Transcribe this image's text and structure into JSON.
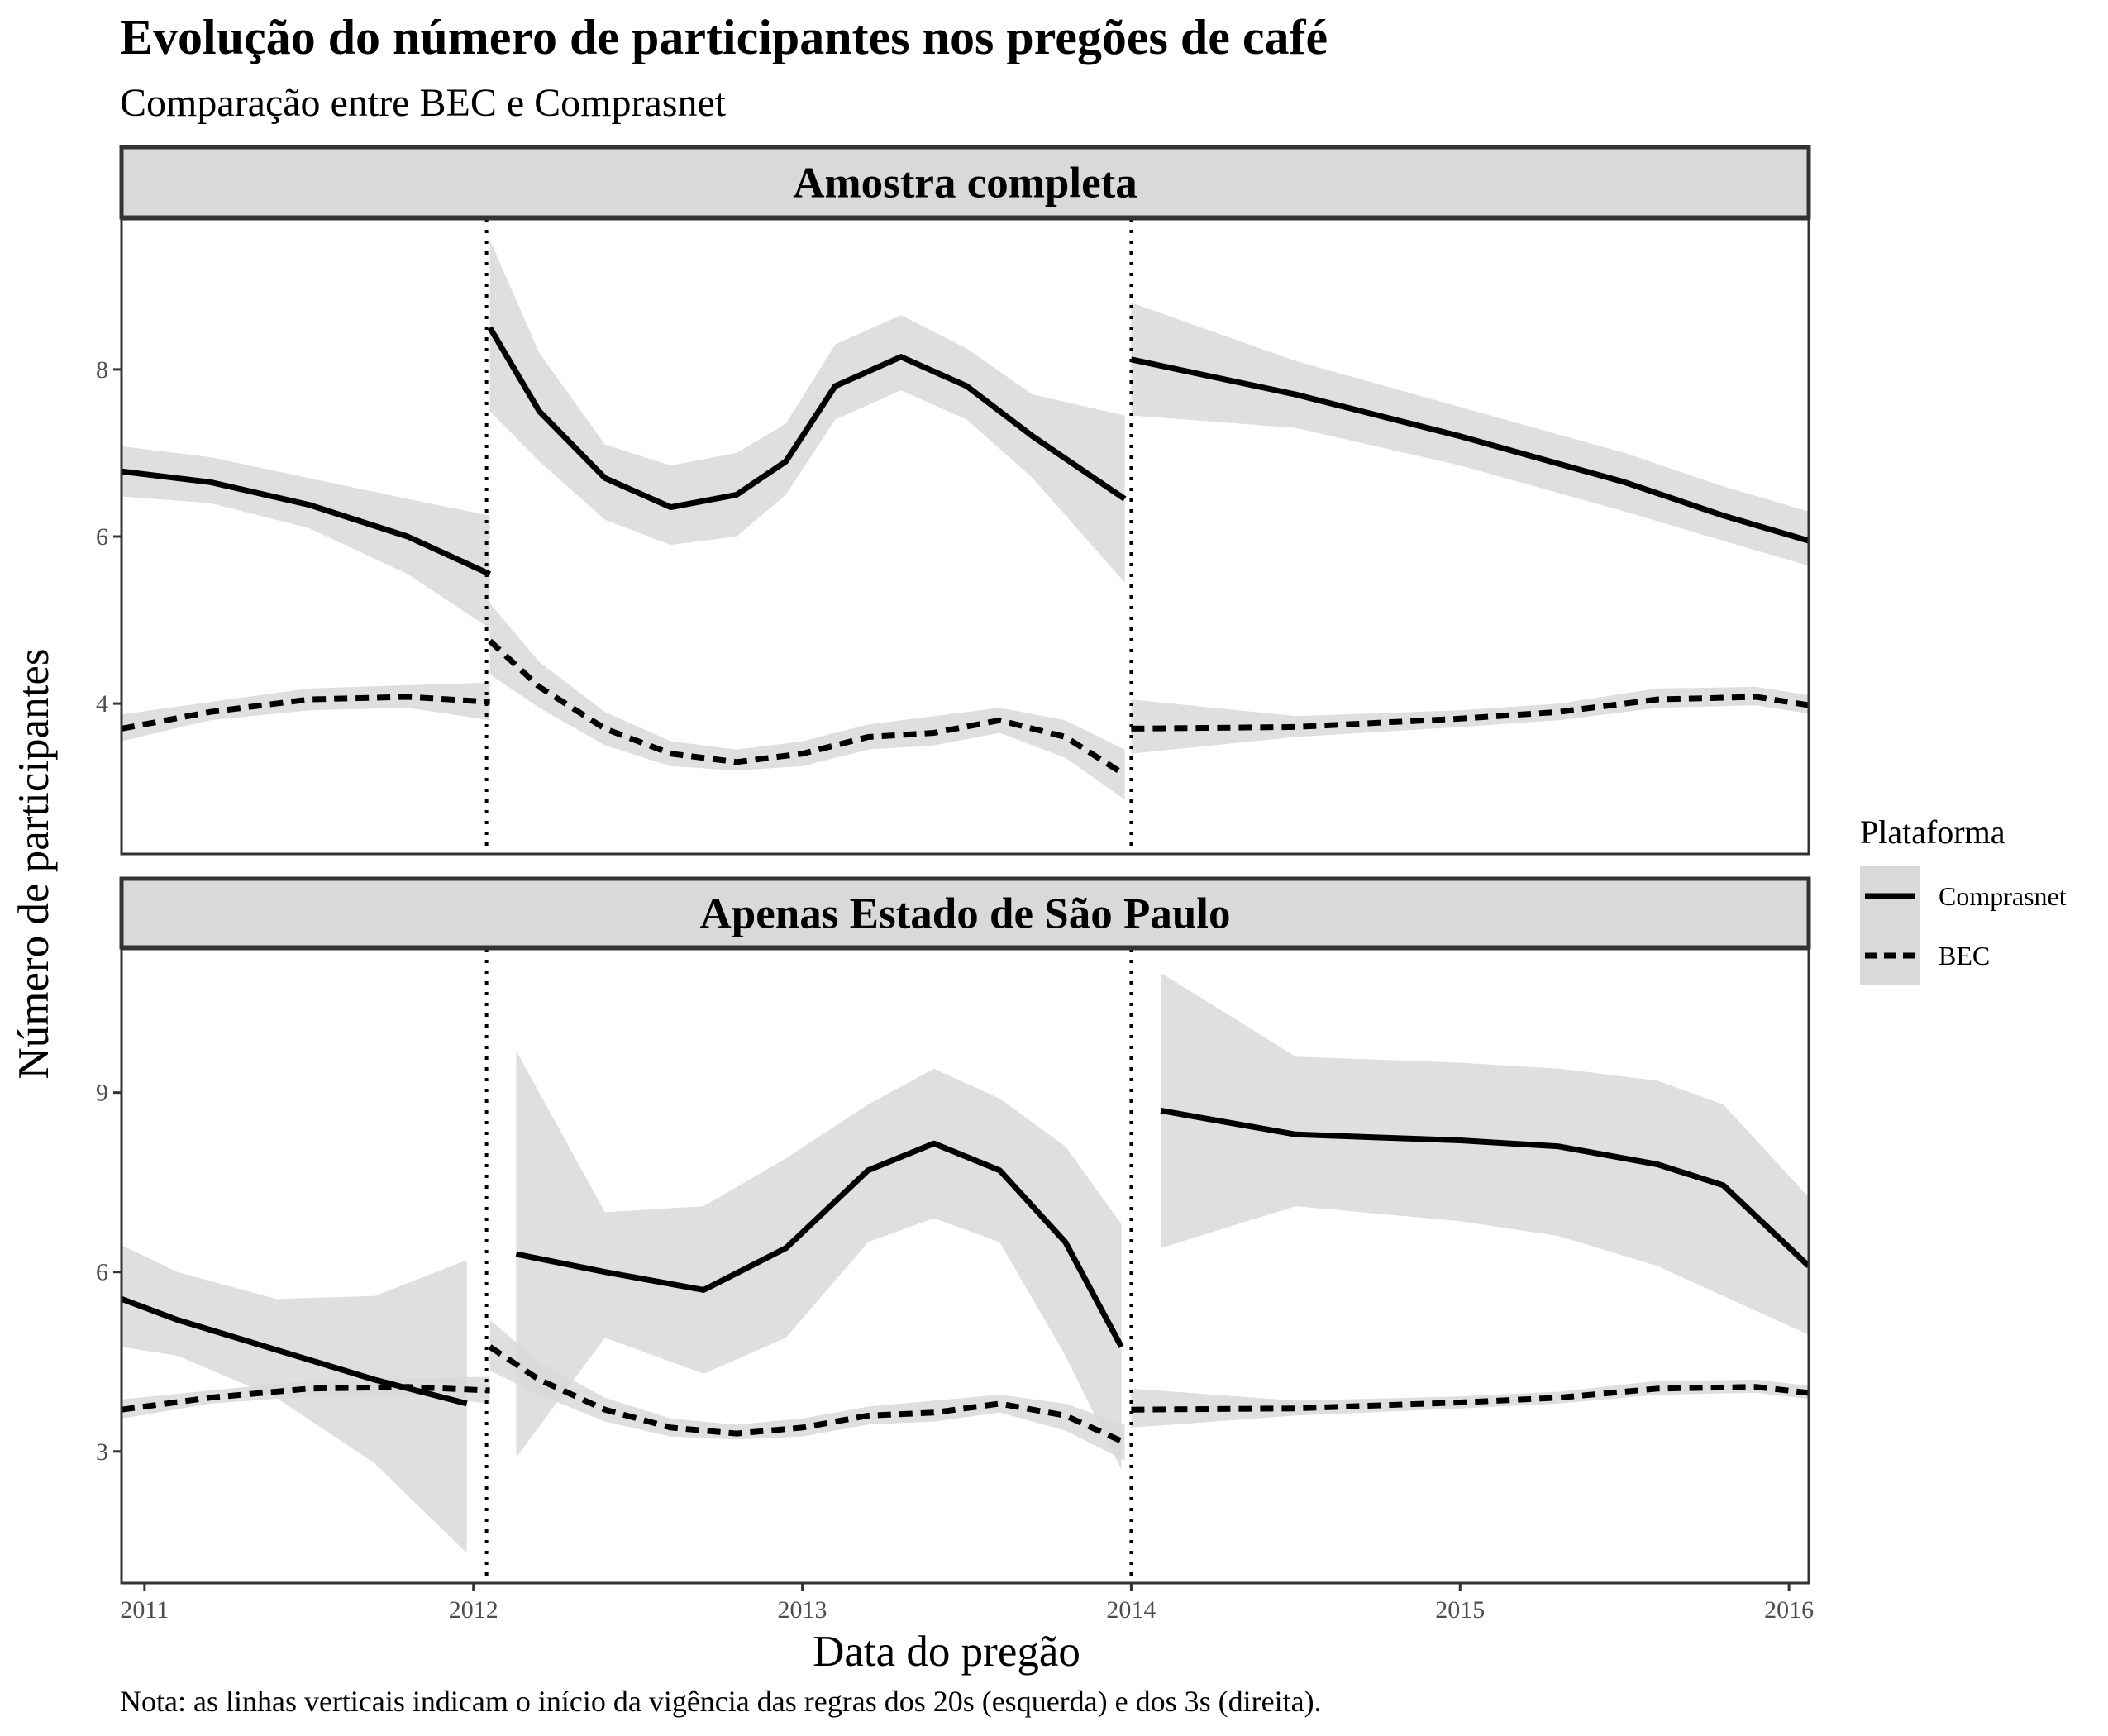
{
  "chart_data": {
    "type": "line",
    "title": "Evolução do número de participantes nos pregões de café",
    "subtitle": "Comparação entre BEC e Comprasnet",
    "xlabel": "Data do pregão",
    "ylabel": "Número de participantes",
    "caption": "Nota: as linhas verticais indicam o início da vigência das regras dos 20s (esquerda) e dos 3s (direita).",
    "legend": {
      "title": "Plataforma",
      "position": "right",
      "entries": [
        {
          "label": "Comprasnet",
          "linetype": "solid"
        },
        {
          "label": "BEC",
          "linetype": "dashed"
        }
      ]
    },
    "x_range": [
      2010.93,
      2016.06
    ],
    "x_ticks": [
      2011,
      2012,
      2013,
      2014,
      2015,
      2016
    ],
    "x_tick_labels": [
      "2011",
      "2012",
      "2013",
      "2014",
      "2015",
      "2016"
    ],
    "vlines": [
      2012.04,
      2014.0
    ],
    "colors": {
      "line": "#000000",
      "ribbon": "#d9d9d9",
      "strip": "#d9d9d9",
      "panel_border": "#333333"
    },
    "panels": [
      {
        "strip": "Amostra completa",
        "ylim": [
          2.2,
          9.8
        ],
        "y_ticks": [
          4,
          6,
          8
        ],
        "y_tick_labels": [
          "4",
          "6",
          "8"
        ],
        "series": [
          {
            "name": "Comprasnet",
            "segments": [
              {
                "x": [
                  2010.93,
                  2011.2,
                  2011.5,
                  2011.8,
                  2012.05
                ],
                "y": [
                  6.78,
                  6.65,
                  6.38,
                  6.0,
                  5.55
                ],
                "lo": [
                  6.48,
                  6.4,
                  6.1,
                  5.55,
                  4.9
                ],
                "hi": [
                  7.08,
                  6.95,
                  6.7,
                  6.45,
                  6.25
                ]
              },
              {
                "x": [
                  2012.05,
                  2012.2,
                  2012.4,
                  2012.6,
                  2012.8,
                  2012.95,
                  2013.1,
                  2013.3,
                  2013.5,
                  2013.7,
                  2013.98
                ],
                "y": [
                  8.5,
                  7.5,
                  6.7,
                  6.35,
                  6.5,
                  6.9,
                  7.8,
                  8.15,
                  7.8,
                  7.2,
                  6.45
                ],
                "lo": [
                  7.5,
                  6.9,
                  6.2,
                  5.9,
                  6.0,
                  6.5,
                  7.4,
                  7.75,
                  7.4,
                  6.7,
                  5.45
                ],
                "hi": [
                  9.55,
                  8.2,
                  7.1,
                  6.85,
                  7.0,
                  7.35,
                  8.3,
                  8.65,
                  8.25,
                  7.7,
                  7.45
                ]
              },
              {
                "x": [
                  2014.0,
                  2014.5,
                  2015.0,
                  2015.5,
                  2015.8,
                  2016.06
                ],
                "y": [
                  8.12,
                  7.7,
                  7.2,
                  6.65,
                  6.25,
                  5.95
                ],
                "lo": [
                  7.45,
                  7.3,
                  6.85,
                  6.3,
                  5.95,
                  5.65
                ],
                "hi": [
                  8.8,
                  8.1,
                  7.55,
                  7.0,
                  6.6,
                  6.3
                ]
              }
            ]
          },
          {
            "name": "BEC",
            "segments": [
              {
                "x": [
                  2010.93,
                  2011.2,
                  2011.5,
                  2011.8,
                  2012.05
                ],
                "y": [
                  3.7,
                  3.9,
                  4.05,
                  4.08,
                  4.02
                ],
                "lo": [
                  3.55,
                  3.8,
                  3.92,
                  3.95,
                  3.8
                ],
                "hi": [
                  3.87,
                  4.02,
                  4.18,
                  4.22,
                  4.25
                ]
              },
              {
                "x": [
                  2012.05,
                  2012.2,
                  2012.4,
                  2012.6,
                  2012.8,
                  2013.0,
                  2013.2,
                  2013.4,
                  2013.6,
                  2013.8,
                  2013.98
                ],
                "y": [
                  4.75,
                  4.2,
                  3.7,
                  3.4,
                  3.3,
                  3.4,
                  3.6,
                  3.65,
                  3.8,
                  3.6,
                  3.15
                ],
                "lo": [
                  4.35,
                  3.95,
                  3.5,
                  3.25,
                  3.2,
                  3.25,
                  3.45,
                  3.5,
                  3.65,
                  3.35,
                  2.85
                ],
                "hi": [
                  5.2,
                  4.5,
                  3.9,
                  3.55,
                  3.45,
                  3.55,
                  3.75,
                  3.85,
                  3.95,
                  3.8,
                  3.45
                ]
              },
              {
                "x": [
                  2014.0,
                  2014.5,
                  2015.0,
                  2015.3,
                  2015.6,
                  2015.9,
                  2016.06
                ],
                "y": [
                  3.7,
                  3.72,
                  3.82,
                  3.9,
                  4.05,
                  4.08,
                  3.98
                ],
                "lo": [
                  3.4,
                  3.6,
                  3.72,
                  3.8,
                  3.95,
                  3.98,
                  3.88
                ],
                "hi": [
                  4.05,
                  3.85,
                  3.92,
                  4.0,
                  4.18,
                  4.2,
                  4.1
                ]
              }
            ]
          }
        ]
      },
      {
        "strip": "Apenas Estado de São Paulo",
        "ylim": [
          0.8,
          11.4
        ],
        "y_ticks": [
          3,
          6,
          9
        ],
        "y_tick_labels": [
          "3",
          "6",
          "9"
        ],
        "series": [
          {
            "name": "Comprasnet",
            "segments": [
              {
                "x": [
                  2010.93,
                  2011.1,
                  2011.4,
                  2011.7,
                  2011.98
                ],
                "y": [
                  5.55,
                  5.2,
                  4.7,
                  4.2,
                  3.8
                ],
                "lo": [
                  4.75,
                  4.6,
                  3.9,
                  2.8,
                  1.3
                ],
                "hi": [
                  6.45,
                  6.0,
                  5.55,
                  5.6,
                  6.2
                ]
              },
              {
                "x": [
                  2012.13,
                  2012.4,
                  2012.7,
                  2012.95,
                  2013.2,
                  2013.4,
                  2013.6,
                  2013.8,
                  2013.97
                ],
                "y": [
                  6.3,
                  6.0,
                  5.7,
                  6.4,
                  7.7,
                  8.15,
                  7.7,
                  6.5,
                  4.75
                ],
                "lo": [
                  2.9,
                  4.9,
                  4.3,
                  4.9,
                  6.5,
                  6.9,
                  6.5,
                  4.6,
                  2.7
                ],
                "hi": [
                  9.7,
                  7.0,
                  7.1,
                  7.9,
                  8.8,
                  9.4,
                  8.9,
                  8.1,
                  6.8
                ]
              },
              {
                "x": [
                  2014.09,
                  2014.5,
                  2015.0,
                  2015.3,
                  2015.6,
                  2015.8,
                  2016.06
                ],
                "y": [
                  8.7,
                  8.3,
                  8.2,
                  8.1,
                  7.8,
                  7.45,
                  6.1
                ],
                "lo": [
                  6.4,
                  7.1,
                  6.85,
                  6.6,
                  6.1,
                  5.6,
                  4.95
                ],
                "hi": [
                  11.0,
                  9.6,
                  9.5,
                  9.4,
                  9.2,
                  8.8,
                  7.25
                ]
              }
            ]
          },
          {
            "name": "BEC",
            "segments": [
              {
                "x": [
                  2010.93,
                  2011.2,
                  2011.5,
                  2011.8,
                  2012.05
                ],
                "y": [
                  3.7,
                  3.9,
                  4.05,
                  4.08,
                  4.02
                ],
                "lo": [
                  3.55,
                  3.8,
                  3.92,
                  3.95,
                  3.8
                ],
                "hi": [
                  3.87,
                  4.02,
                  4.18,
                  4.22,
                  4.25
                ]
              },
              {
                "x": [
                  2012.05,
                  2012.2,
                  2012.4,
                  2012.6,
                  2012.8,
                  2013.0,
                  2013.2,
                  2013.4,
                  2013.6,
                  2013.8,
                  2013.98
                ],
                "y": [
                  4.75,
                  4.2,
                  3.7,
                  3.4,
                  3.3,
                  3.4,
                  3.6,
                  3.65,
                  3.8,
                  3.6,
                  3.15
                ],
                "lo": [
                  4.35,
                  3.95,
                  3.5,
                  3.25,
                  3.2,
                  3.25,
                  3.45,
                  3.5,
                  3.65,
                  3.35,
                  2.85
                ],
                "hi": [
                  5.2,
                  4.5,
                  3.9,
                  3.55,
                  3.45,
                  3.55,
                  3.75,
                  3.85,
                  3.95,
                  3.8,
                  3.45
                ]
              },
              {
                "x": [
                  2014.0,
                  2014.5,
                  2015.0,
                  2015.3,
                  2015.6,
                  2015.9,
                  2016.06
                ],
                "y": [
                  3.7,
                  3.72,
                  3.82,
                  3.9,
                  4.05,
                  4.08,
                  3.98
                ],
                "lo": [
                  3.4,
                  3.6,
                  3.72,
                  3.8,
                  3.95,
                  3.98,
                  3.88
                ],
                "hi": [
                  4.05,
                  3.85,
                  3.92,
                  4.0,
                  4.18,
                  4.2,
                  4.1
                ]
              }
            ]
          }
        ]
      }
    ]
  }
}
